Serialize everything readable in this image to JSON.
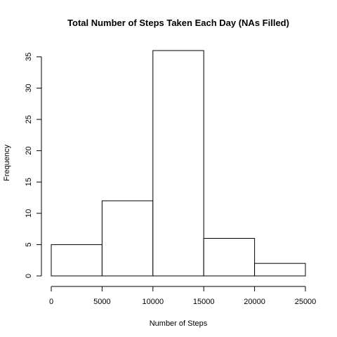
{
  "chart_data": {
    "type": "bar",
    "title": "Total Number of Steps Taken Each Day (NAs Filled)",
    "xlabel": "Number of Steps",
    "ylabel": "Frequency",
    "bins": [
      {
        "from": 0,
        "to": 5000,
        "value": 5
      },
      {
        "from": 5000,
        "to": 10000,
        "value": 12
      },
      {
        "from": 10000,
        "to": 15000,
        "value": 36
      },
      {
        "from": 15000,
        "to": 20000,
        "value": 6
      },
      {
        "from": 20000,
        "to": 25000,
        "value": 2
      }
    ],
    "xlim": [
      0,
      25000
    ],
    "ylim": [
      0,
      36
    ],
    "x_ticks": [
      0,
      5000,
      10000,
      15000,
      20000,
      25000
    ],
    "x_tick_labels": [
      "0",
      "5000",
      "10000",
      "15000",
      "20000",
      "25000"
    ],
    "y_ticks": [
      0,
      5,
      10,
      15,
      20,
      25,
      30,
      35
    ],
    "y_tick_labels": [
      "0",
      "5",
      "10",
      "15",
      "20",
      "25",
      "30",
      "35"
    ],
    "grid": false,
    "legend": "none",
    "colors": {
      "bar_fill": "#ffffff",
      "bar_stroke": "#000000",
      "axis": "#000000",
      "background": "#ffffff"
    }
  }
}
